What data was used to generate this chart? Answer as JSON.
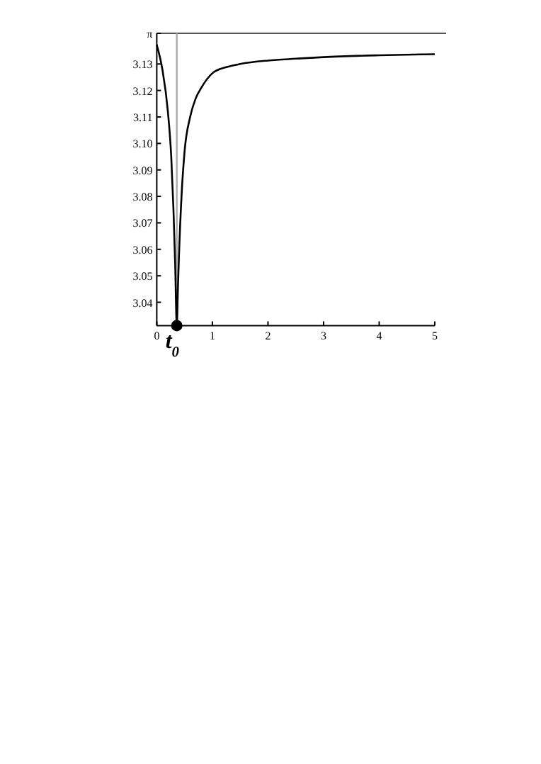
{
  "chart_data": {
    "type": "line",
    "xlim": [
      0,
      5
    ],
    "ylim": [
      3.0312,
      3.14159
    ],
    "xticks": [
      0,
      1,
      2,
      3,
      4,
      5
    ],
    "yticks": [
      3.04,
      3.05,
      3.06,
      3.07,
      3.08,
      3.09,
      {
        "value": 3.1,
        "label": "3.10"
      },
      3.11,
      3.12,
      3.13,
      {
        "value": 3.14159,
        "label": "π"
      }
    ],
    "series": [
      {
        "color": "#000000",
        "x": [
          0,
          0.1,
          0.2,
          0.26,
          0.3,
          0.33,
          0.36,
          0.38,
          0.4,
          0.45,
          0.5,
          0.6,
          0.7,
          0.8,
          1,
          1.25,
          1.5,
          2,
          2.5,
          3,
          4,
          5
        ],
        "values": [
          3.1372,
          3.128,
          3.112,
          3.095,
          3.075,
          3.055,
          3.0312,
          3.045,
          3.058,
          3.082,
          3.097,
          3.11,
          3.117,
          3.121,
          3.1265,
          3.1288,
          3.13,
          3.1313,
          3.132,
          3.1326,
          3.1333,
          3.1337
        ]
      },
      {
        "type": "scatter",
        "color": "#000000",
        "x": [
          0.36
        ],
        "values": [
          3.0312
        ],
        "marker": "circle"
      }
    ],
    "ref_lines": [
      {
        "axis": "y",
        "value": 3.14159,
        "color": "#555555"
      },
      {
        "axis": "x",
        "value": 0.36,
        "color": "#aaaaaa"
      }
    ],
    "annotations": [
      {
        "text": "t$_{0}$",
        "x": 0.36,
        "y": 3.0312
      }
    ],
    "grid": false,
    "marker": "none",
    "line_style": "solid"
  }
}
